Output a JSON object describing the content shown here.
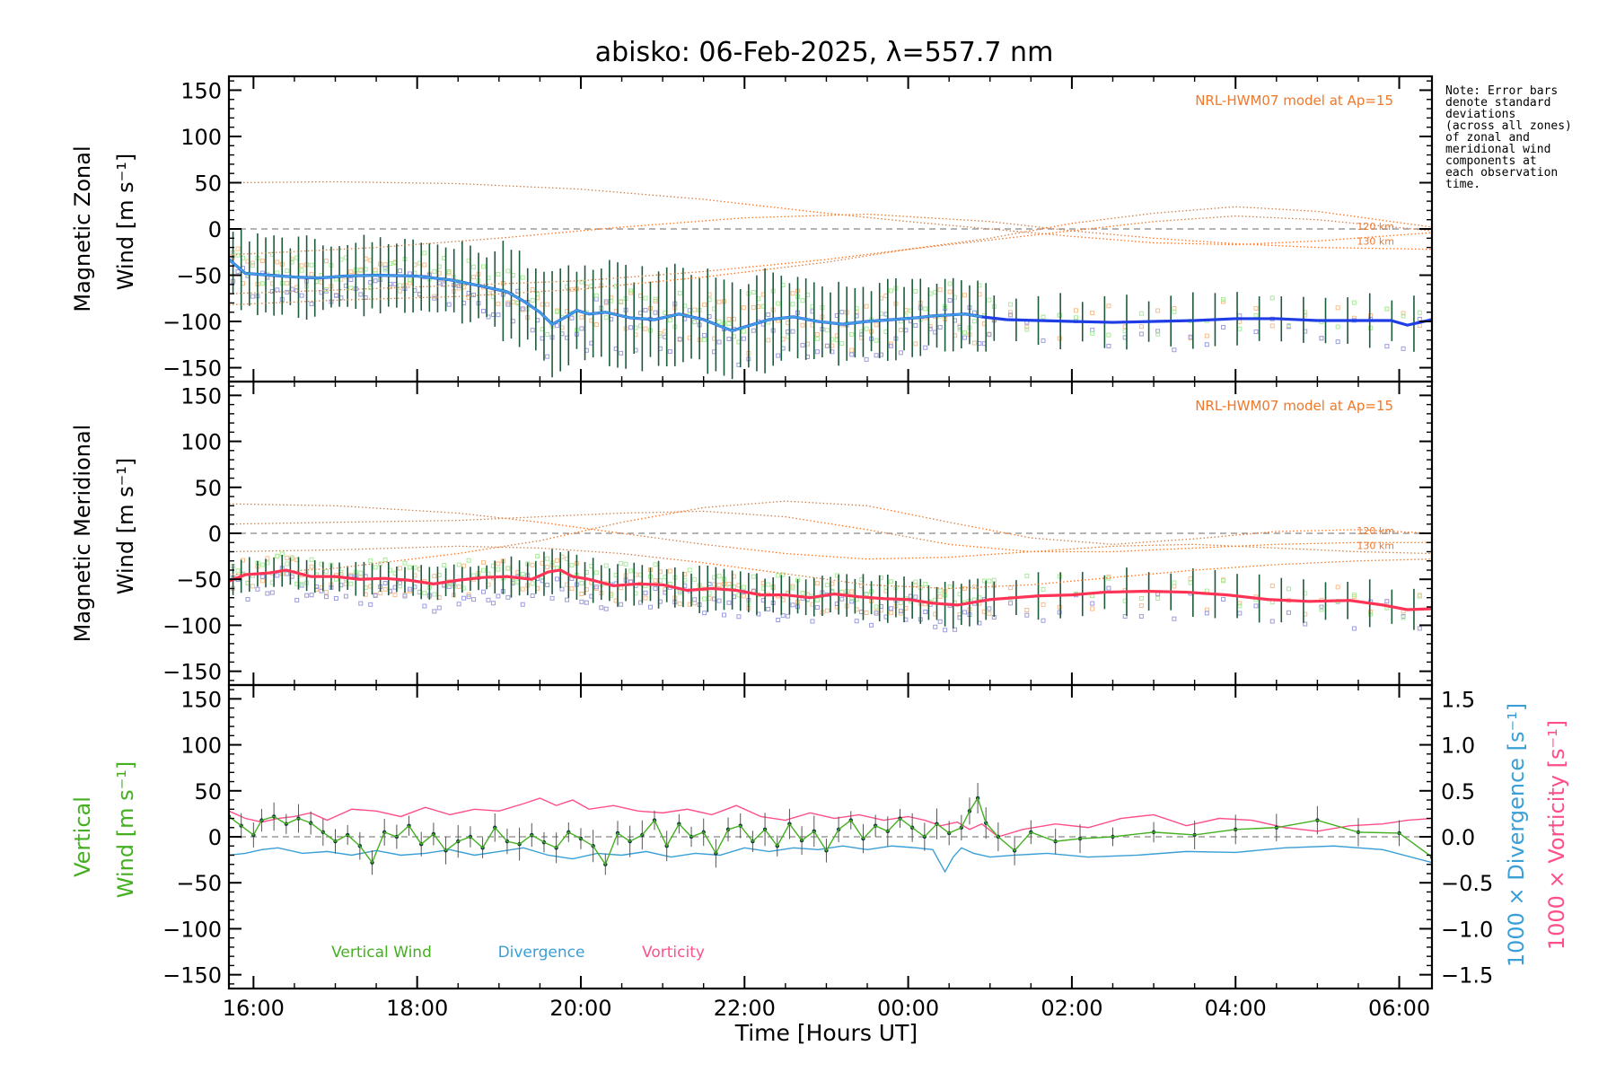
{
  "title": "abisko: 06-Feb-2025, λ=557.7 nm",
  "note": "Note: Error bars\ndenote standard\ndeviations\n(across all zones)\nof zonal and\nmeridional wind\ncomponents at\neach observation\ntime.",
  "colors": {
    "zonal": "#1f3de6",
    "zonal_light": "#3f9fe0",
    "meridional": "#ff3355",
    "model": "#f0782a",
    "vertical": "#44b020",
    "divergence": "#3a9fd6",
    "vorticity": "#ff4f8b",
    "errorbar": "#1d5a3a",
    "zone_orange": "#f7be8c",
    "zone_purple": "#9c9ce0",
    "zone_green": "#a8ec9a"
  },
  "chart_data": [
    {
      "type": "line",
      "panel": "zonal",
      "ylabel_line1": "Magnetic Zonal",
      "ylabel_line2": "Wind [m s⁻¹]",
      "ylim": [
        -165,
        165
      ],
      "yticks": [
        -150,
        -100,
        -50,
        0,
        50,
        100,
        150
      ],
      "xlim": [
        15.7,
        30.4
      ],
      "model_label": "NRL-HWM07 model at Ap=15",
      "model_curve_labels": [
        "120 km",
        "130 km"
      ],
      "model_curves": [
        {
          "name": "120 km",
          "x": [
            15.7,
            17.0,
            18.5,
            20.0,
            21.5,
            23.0,
            24.0,
            25.0,
            26.0,
            27.0,
            28.0,
            29.0,
            30.4
          ],
          "y": [
            50,
            51,
            49,
            43,
            32,
            17,
            8,
            0,
            -8,
            -15,
            -17,
            -13,
            -4
          ]
        },
        {
          "name": "130 km",
          "x": [
            15.7,
            17.0,
            18.5,
            20.0,
            21.5,
            23.0,
            24.0,
            25.0,
            26.0,
            27.0,
            28.0,
            29.0,
            30.4
          ],
          "y": [
            -82,
            -77,
            -73,
            -65,
            -52,
            -36,
            -22,
            -10,
            6,
            17,
            24,
            19,
            2
          ]
        },
        {
          "name": "",
          "x": [
            15.7,
            17.0,
            18.5,
            20.0,
            21.5,
            23.0,
            24.0,
            25.0,
            26.0,
            27.0,
            28.0,
            29.0,
            30.4
          ],
          "y": [
            -70,
            -66,
            -61,
            -56,
            -46,
            -33,
            -22,
            -12,
            -2,
            8,
            14,
            10,
            -2
          ]
        },
        {
          "name": "",
          "x": [
            15.7,
            17.5,
            19.0,
            20.5,
            22.0,
            23.5,
            25.0,
            26.0,
            27.0,
            28.0,
            29.0,
            30.4
          ],
          "y": [
            -28,
            -20,
            -10,
            2,
            12,
            16,
            8,
            -2,
            -10,
            -16,
            -20,
            -22
          ]
        }
      ],
      "series": {
        "name": "",
        "x": [
          15.7,
          15.9,
          16.2,
          16.5,
          16.8,
          17.1,
          17.5,
          18.0,
          18.4,
          18.8,
          19.1,
          19.3,
          19.5,
          19.65,
          19.8,
          19.95,
          20.1,
          20.3,
          20.6,
          20.9,
          21.2,
          21.5,
          21.7,
          21.85,
          22.0,
          22.3,
          22.6,
          22.9,
          23.2,
          23.5,
          23.8,
          24.1,
          24.3,
          24.5,
          24.7,
          24.9,
          25.2,
          25.6,
          26.0,
          26.5,
          27.0,
          27.5,
          28.0,
          28.5,
          29.0,
          29.5,
          29.9,
          30.1,
          30.4
        ],
        "y": [
          -33,
          -48,
          -50,
          -52,
          -53,
          -51,
          -50,
          -51,
          -55,
          -62,
          -68,
          -78,
          -90,
          -103,
          -96,
          -88,
          -92,
          -90,
          -96,
          -98,
          -92,
          -98,
          -105,
          -110,
          -106,
          -98,
          -95,
          -100,
          -103,
          -100,
          -98,
          -96,
          -94,
          -93,
          -92,
          -95,
          -98,
          -99,
          -100,
          -101,
          -100,
          -99,
          -97,
          -97,
          -99,
          -99,
          -99,
          -104,
          -98
        ]
      },
      "errorbar_x_start": 15.75,
      "errorbar_x_end": 30.35
    },
    {
      "type": "line",
      "panel": "meridional",
      "ylabel_line1": "Magnetic Meridional",
      "ylabel_line2": "Wind [m s⁻¹]",
      "ylim": [
        -165,
        165
      ],
      "yticks": [
        -150,
        -100,
        -50,
        0,
        50,
        100,
        150
      ],
      "xlim": [
        15.7,
        30.4
      ],
      "model_label": "NRL-HWM07 model at Ap=15",
      "model_curve_labels": [
        "120 km",
        "130 km"
      ],
      "model_curves": [
        {
          "name": "120 km",
          "x": [
            15.7,
            17.0,
            18.5,
            19.5,
            20.5,
            21.5,
            22.5,
            23.5,
            24.5,
            25.5,
            26.5,
            27.5,
            28.5,
            29.5,
            30.4
          ],
          "y": [
            -45,
            -38,
            -22,
            -8,
            12,
            28,
            35,
            30,
            12,
            -5,
            -12,
            -6,
            2,
            4,
            0
          ]
        },
        {
          "name": "130 km",
          "x": [
            15.7,
            17.0,
            18.5,
            19.5,
            20.5,
            21.5,
            22.5,
            23.5,
            24.5,
            25.5,
            26.5,
            27.5,
            28.5,
            29.5,
            30.4
          ],
          "y": [
            32,
            30,
            22,
            12,
            0,
            -12,
            -22,
            -28,
            -26,
            -20,
            -14,
            -12,
            -16,
            -20,
            -22
          ]
        },
        {
          "name": "",
          "x": [
            15.7,
            17.0,
            18.5,
            19.5,
            20.5,
            21.5,
            22.5,
            23.5,
            24.5,
            25.5,
            26.5,
            27.5,
            28.5,
            29.5,
            30.4
          ],
          "y": [
            10,
            12,
            14,
            18,
            22,
            24,
            18,
            4,
            -12,
            -20,
            -20,
            -16,
            -12,
            -10,
            -10
          ]
        },
        {
          "name": "",
          "x": [
            15.7,
            17.0,
            18.5,
            19.5,
            20.5,
            21.5,
            22.5,
            23.5,
            24.5,
            25.5,
            26.5,
            27.5,
            28.5,
            29.5,
            30.4
          ],
          "y": [
            -20,
            -18,
            -14,
            -16,
            -22,
            -32,
            -44,
            -56,
            -60,
            -56,
            -48,
            -40,
            -34,
            -30,
            -28
          ]
        }
      ],
      "series": {
        "name": "",
        "x": [
          15.7,
          15.9,
          16.2,
          16.4,
          16.7,
          17.0,
          17.3,
          17.6,
          17.9,
          18.2,
          18.5,
          18.8,
          19.1,
          19.4,
          19.6,
          19.75,
          19.9,
          20.1,
          20.4,
          20.7,
          21.0,
          21.3,
          21.6,
          21.9,
          22.2,
          22.5,
          22.8,
          23.1,
          23.4,
          23.7,
          24.0,
          24.3,
          24.6,
          24.8,
          25.0,
          25.3,
          25.6,
          26.0,
          26.4,
          26.9,
          27.4,
          27.9,
          28.4,
          28.9,
          29.4,
          29.8,
          30.1,
          30.4
        ],
        "y": [
          -52,
          -45,
          -43,
          -40,
          -47,
          -47,
          -50,
          -49,
          -51,
          -55,
          -51,
          -48,
          -47,
          -50,
          -42,
          -40,
          -47,
          -50,
          -57,
          -55,
          -56,
          -62,
          -60,
          -62,
          -67,
          -67,
          -70,
          -66,
          -69,
          -71,
          -72,
          -76,
          -78,
          -75,
          -72,
          -70,
          -68,
          -67,
          -64,
          -63,
          -64,
          -67,
          -72,
          -74,
          -73,
          -78,
          -83,
          -82
        ]
      },
      "errorbar_x_start": 15.75,
      "errorbar_x_end": 30.35
    },
    {
      "type": "line",
      "panel": "vertical",
      "ylabel_line1": "Vertical",
      "ylabel_line2": "Wind [m s⁻¹]",
      "right_label_1": "1000 × Divergence [s⁻¹]",
      "right_label_2": "1000 × Vorticity [s⁻¹]",
      "ylim": [
        -165,
        165
      ],
      "yticks": [
        -150,
        -100,
        -50,
        0,
        50,
        100,
        150
      ],
      "y2lim": [
        -1.65,
        1.65
      ],
      "y2ticks": [
        -1.5,
        -1.0,
        -0.5,
        0.0,
        0.5,
        1.0,
        1.5
      ],
      "y2ticklabels": [
        "−1.5",
        "−1.0",
        "−0.5",
        "0.0",
        "0.5",
        "1.0",
        "1.5"
      ],
      "xlim": [
        15.7,
        30.4
      ],
      "xticks": [
        16,
        18,
        20,
        22,
        24,
        26,
        28,
        30
      ],
      "xticklabels": [
        "16:00",
        "18:00",
        "20:00",
        "22:00",
        "00:00",
        "02:00",
        "04:00",
        "06:00"
      ],
      "xlabel": "Time [Hours UT]",
      "legend": [
        "Vertical Wind",
        "Divergence",
        "Vorticity"
      ],
      "vertical_wind": {
        "x": [
          15.7,
          15.85,
          16.0,
          16.1,
          16.25,
          16.4,
          16.55,
          16.7,
          16.85,
          17.0,
          17.15,
          17.3,
          17.45,
          17.6,
          17.75,
          17.9,
          18.05,
          18.2,
          18.35,
          18.5,
          18.65,
          18.8,
          18.95,
          19.1,
          19.25,
          19.4,
          19.55,
          19.7,
          19.85,
          20.0,
          20.15,
          20.3,
          20.45,
          20.6,
          20.75,
          20.9,
          21.05,
          21.2,
          21.35,
          21.5,
          21.65,
          21.8,
          21.95,
          22.1,
          22.25,
          22.4,
          22.55,
          22.7,
          22.85,
          23.0,
          23.15,
          23.3,
          23.45,
          23.6,
          23.75,
          23.9,
          24.05,
          24.2,
          24.35,
          24.5,
          24.65,
          24.75,
          24.85,
          24.95,
          25.1,
          25.3,
          25.5,
          25.8,
          26.1,
          26.5,
          27.0,
          27.5,
          28.0,
          28.5,
          29.0,
          29.5,
          30.0,
          30.4
        ],
        "y": [
          22,
          12,
          2,
          18,
          22,
          14,
          20,
          15,
          5,
          -5,
          2,
          -10,
          -28,
          5,
          0,
          12,
          -8,
          3,
          -15,
          -5,
          0,
          -12,
          10,
          -5,
          -8,
          2,
          -6,
          -12,
          5,
          -2,
          -10,
          -30,
          4,
          -5,
          2,
          18,
          -10,
          14,
          0,
          5,
          -18,
          8,
          12,
          -5,
          8,
          -10,
          14,
          -4,
          6,
          -15,
          8,
          18,
          -2,
          12,
          6,
          20,
          10,
          0,
          14,
          4,
          10,
          28,
          42,
          15,
          0,
          -15,
          5,
          -5,
          -2,
          0,
          5,
          2,
          8,
          10,
          18,
          5,
          4,
          -22
        ]
      },
      "divergence": {
        "x": [
          15.7,
          15.9,
          16.1,
          16.3,
          16.6,
          16.9,
          17.2,
          17.5,
          17.8,
          18.1,
          18.4,
          18.7,
          19.0,
          19.3,
          19.6,
          19.9,
          20.2,
          20.5,
          20.8,
          21.1,
          21.4,
          21.7,
          22.0,
          22.3,
          22.6,
          22.9,
          23.2,
          23.5,
          23.8,
          24.1,
          24.3,
          24.45,
          24.55,
          24.65,
          24.8,
          25.0,
          25.3,
          25.7,
          26.2,
          26.8,
          27.4,
          28.0,
          28.6,
          29.2,
          29.8,
          30.4
        ],
        "y": [
          -0.2,
          -0.18,
          -0.14,
          -0.12,
          -0.18,
          -0.16,
          -0.2,
          -0.15,
          -0.2,
          -0.18,
          -0.14,
          -0.2,
          -0.16,
          -0.12,
          -0.2,
          -0.24,
          -0.18,
          -0.2,
          -0.16,
          -0.22,
          -0.18,
          -0.2,
          -0.12,
          -0.16,
          -0.12,
          -0.14,
          -0.1,
          -0.14,
          -0.1,
          -0.12,
          -0.14,
          -0.38,
          -0.22,
          -0.12,
          -0.18,
          -0.22,
          -0.2,
          -0.18,
          -0.22,
          -0.2,
          -0.16,
          -0.17,
          -0.12,
          -0.1,
          -0.14,
          -0.28
        ]
      },
      "vorticity": {
        "x": [
          15.7,
          15.9,
          16.1,
          16.3,
          16.5,
          16.7,
          16.9,
          17.2,
          17.5,
          17.8,
          18.1,
          18.4,
          18.7,
          19.0,
          19.3,
          19.5,
          19.7,
          19.9,
          20.1,
          20.4,
          20.7,
          21.0,
          21.3,
          21.6,
          21.9,
          22.2,
          22.5,
          22.8,
          23.1,
          23.4,
          23.7,
          24.0,
          24.2,
          24.4,
          24.6,
          24.75,
          24.9,
          25.1,
          25.4,
          25.8,
          26.2,
          26.6,
          27.0,
          27.4,
          27.8,
          28.2,
          28.6,
          29.0,
          29.4,
          29.8,
          30.1,
          30.4
        ],
        "y": [
          0.28,
          0.2,
          0.16,
          0.2,
          0.22,
          0.26,
          0.18,
          0.3,
          0.28,
          0.22,
          0.32,
          0.24,
          0.3,
          0.28,
          0.36,
          0.42,
          0.34,
          0.4,
          0.3,
          0.34,
          0.28,
          0.26,
          0.3,
          0.24,
          0.34,
          0.22,
          0.18,
          0.26,
          0.2,
          0.24,
          0.18,
          0.22,
          0.18,
          0.12,
          0.16,
          0.08,
          0.14,
          0.0,
          0.08,
          0.14,
          0.1,
          0.2,
          0.24,
          0.12,
          0.2,
          0.18,
          0.1,
          0.06,
          0.12,
          0.14,
          0.18,
          0.2
        ]
      }
    }
  ]
}
